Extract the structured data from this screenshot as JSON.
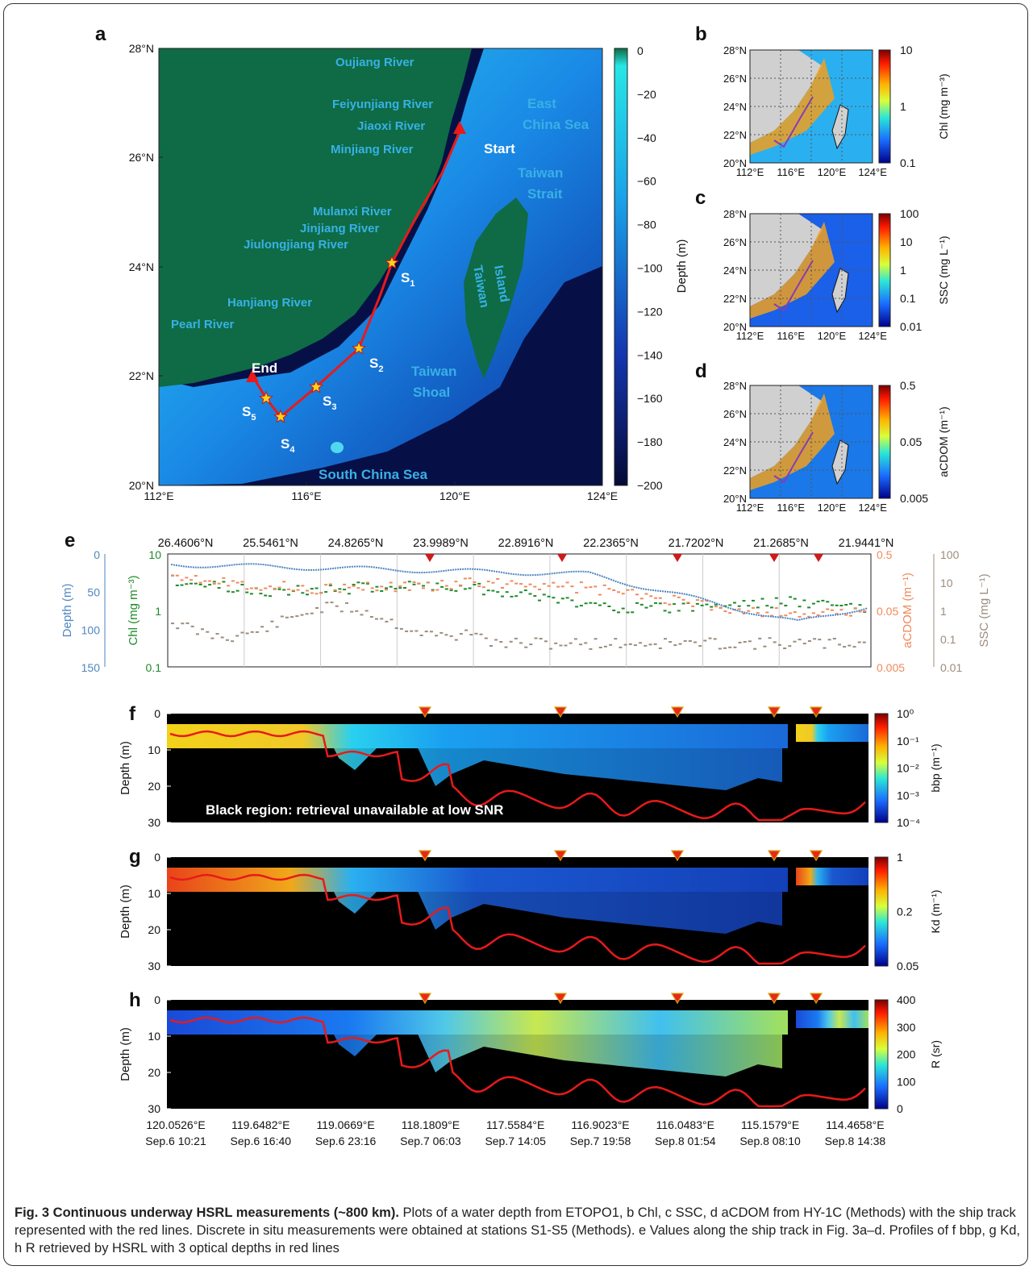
{
  "panel_letters": [
    "a",
    "b",
    "c",
    "d",
    "e",
    "f",
    "g",
    "h"
  ],
  "map_a": {
    "lat_ticks": [
      "28°N",
      "26°N",
      "24°N",
      "22°N",
      "20°N"
    ],
    "lon_ticks": [
      "112°E",
      "116°E",
      "120°E",
      "124°E"
    ],
    "colorbar_ticks": [
      "0",
      "−20",
      "−40",
      "−60",
      "−80",
      "−100",
      "−120",
      "−140",
      "−160",
      "−180",
      "−200"
    ],
    "colorbar_label": "Depth (m)",
    "rivers": [
      "Oujiang River",
      "Feiyunjiang River",
      "Jiaoxi River",
      "Minjiang River",
      "Mulanxi River",
      "Jinjiang River",
      "Jiulongjiang River",
      "Hanjiang River",
      "Pearl River"
    ],
    "seas": [
      "East",
      "China Sea",
      "Taiwan",
      "Strait",
      "Taiwan",
      "Shoal",
      "South China Sea"
    ],
    "island": [
      "Taiwan",
      "Island"
    ],
    "start": "Start",
    "end": "End",
    "stations": [
      "S1",
      "S2",
      "S3",
      "S4",
      "S5"
    ],
    "colors": {
      "land": "#0e6b45",
      "deep": "#061046",
      "shelf": "#1a7fe0",
      "track": "#e81a1a",
      "label": "#39b0e6"
    }
  },
  "small_maps": [
    {
      "label": "Chl (mg m⁻³)",
      "ticks": [
        "10",
        "1",
        "0.1"
      ]
    },
    {
      "label": "SSC (mg L⁻¹)",
      "ticks": [
        "100",
        "10",
        "1",
        "0.1",
        "0.01"
      ]
    },
    {
      "label": "aCDOM (m⁻¹)",
      "ticks": [
        "0.5",
        "0.05",
        "0.005"
      ]
    }
  ],
  "small_lat": [
    "28°N",
    "26°N",
    "24°N",
    "22°N",
    "20°N"
  ],
  "small_lon": [
    "112°E",
    "116°E",
    "120°E",
    "124°E"
  ],
  "panel_e": {
    "top_lat": [
      "26.4606°N",
      "25.5461°N",
      "24.8265°N",
      "23.9989°N",
      "22.8916°N",
      "22.2365°N",
      "21.7202°N",
      "21.2685°N",
      "21.9441°N"
    ],
    "depth_ticks": [
      "0",
      "50",
      "100",
      "150"
    ],
    "depth_label": "Depth (m)",
    "chl_ticks": [
      "10",
      "1",
      "0.1"
    ],
    "chl_label": "Chl (mg m⁻³)",
    "acdom_ticks": [
      "0.5",
      "0.05",
      "0.005"
    ],
    "acdom_label": "aCDOM (m⁻¹)",
    "ssc_ticks": [
      "100",
      "10",
      "1",
      "0.1",
      "0.01"
    ],
    "ssc_label": "SSC (mg L⁻¹)",
    "colors": {
      "depth": "#4f86c0",
      "chl": "#1f8a2a",
      "acdom": "#f08a5c",
      "ssc": "#9b8c7c"
    }
  },
  "profiles": [
    {
      "letter": "f",
      "cb_ticks": [
        "10⁰",
        "10⁻¹",
        "10⁻²",
        "10⁻³",
        "10⁻⁴"
      ],
      "cb_label": "bbp (m⁻¹)",
      "note": "Black region: retrieval unavailable at low SNR"
    },
    {
      "letter": "g",
      "cb_ticks": [
        "1",
        "0.2",
        "0.05"
      ],
      "cb_label": "Kd (m⁻¹)"
    },
    {
      "letter": "h",
      "cb_ticks": [
        "400",
        "300",
        "200",
        "100",
        "0"
      ],
      "cb_label": "R (sr)"
    }
  ],
  "profile_depth_ticks": [
    "0",
    "10",
    "20",
    "30"
  ],
  "profile_depth_label": "Depth (m)",
  "bottom_lon": [
    "120.0526°E",
    "119.6482°E",
    "119.0669°E",
    "118.1809°E",
    "117.5584°E",
    "116.9023°E",
    "116.0483°E",
    "115.1579°E",
    "114.4658°E"
  ],
  "bottom_time": [
    "Sep.6 10:21",
    "Sep.6 16:40",
    "Sep.6 23:16",
    "Sep.7 06:03",
    "Sep.7 14:05",
    "Sep.7 19:58",
    "Sep.8 01:54",
    "Sep.8 08:10",
    "Sep.8 14:38"
  ],
  "caption": {
    "title": "Fig. 3 Continuous underway HSRL measurements (~800 km).",
    "text": "Plots of a water depth from ETOPO1, b Chl, c SSC, d aCDOM from HY-1C (Methods) with the ship track represented with the red lines. Discrete in situ measurements were obtained at stations S1-S5 (Methods). e Values along the ship track in Fig. 3a–d. Profiles of f bbp, g Kd, h R retrieved by HSRL with 3 optical depths in red lines"
  }
}
